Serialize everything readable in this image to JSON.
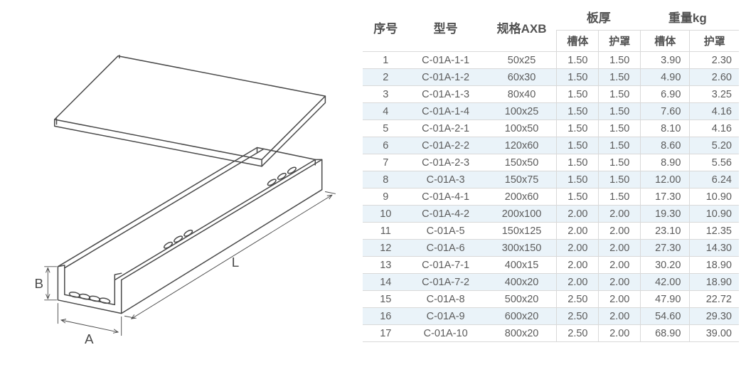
{
  "diagram": {
    "dimension_labels": {
      "L": "L",
      "A": "A",
      "B": "B"
    },
    "stroke": "#4a4a4a",
    "stroke_width": 1.6,
    "background": "#ffffff"
  },
  "table": {
    "headers": {
      "seq": "序号",
      "model": "型号",
      "spec": "规格AXB",
      "thickness_group": "板厚",
      "weight_group": "重量kg",
      "trough": "槽体",
      "cover": "护罩"
    },
    "stripe_color": "#eaf3f9",
    "border_color": "#d9d9d9",
    "rows": [
      {
        "seq": "1",
        "model": "C-01A-1-1",
        "spec": "50x25",
        "thick_trough": "1.50",
        "thick_cover": "1.50",
        "w_trough": "3.90",
        "w_cover": "2.30"
      },
      {
        "seq": "2",
        "model": "C-01A-1-2",
        "spec": "60x30",
        "thick_trough": "1.50",
        "thick_cover": "1.50",
        "w_trough": "4.90",
        "w_cover": "2.60"
      },
      {
        "seq": "3",
        "model": "C-01A-1-3",
        "spec": "80x40",
        "thick_trough": "1.50",
        "thick_cover": "1.50",
        "w_trough": "6.90",
        "w_cover": "3.25"
      },
      {
        "seq": "4",
        "model": "C-01A-1-4",
        "spec": "100x25",
        "thick_trough": "1.50",
        "thick_cover": "1.50",
        "w_trough": "7.60",
        "w_cover": "4.16"
      },
      {
        "seq": "5",
        "model": "C-01A-2-1",
        "spec": "100x50",
        "thick_trough": "1.50",
        "thick_cover": "1.50",
        "w_trough": "8.10",
        "w_cover": "4.16"
      },
      {
        "seq": "6",
        "model": "C-01A-2-2",
        "spec": "120x60",
        "thick_trough": "1.50",
        "thick_cover": "1.50",
        "w_trough": "8.60",
        "w_cover": "5.20"
      },
      {
        "seq": "7",
        "model": "C-01A-2-3",
        "spec": "150x50",
        "thick_trough": "1.50",
        "thick_cover": "1.50",
        "w_trough": "8.90",
        "w_cover": "5.56"
      },
      {
        "seq": "8",
        "model": "C-01A-3",
        "spec": "150x75",
        "thick_trough": "1.50",
        "thick_cover": "1.50",
        "w_trough": "12.00",
        "w_cover": "6.24"
      },
      {
        "seq": "9",
        "model": "C-01A-4-1",
        "spec": "200x60",
        "thick_trough": "1.50",
        "thick_cover": "1.50",
        "w_trough": "17.30",
        "w_cover": "10.90"
      },
      {
        "seq": "10",
        "model": "C-01A-4-2",
        "spec": "200x100",
        "thick_trough": "2.00",
        "thick_cover": "2.00",
        "w_trough": "19.30",
        "w_cover": "10.90"
      },
      {
        "seq": "11",
        "model": "C-01A-5",
        "spec": "150x125",
        "thick_trough": "2.00",
        "thick_cover": "2.00",
        "w_trough": "23.10",
        "w_cover": "12.35"
      },
      {
        "seq": "12",
        "model": "C-01A-6",
        "spec": "300x150",
        "thick_trough": "2.00",
        "thick_cover": "2.00",
        "w_trough": "27.30",
        "w_cover": "14.30"
      },
      {
        "seq": "13",
        "model": "C-01A-7-1",
        "spec": "400x15",
        "thick_trough": "2.00",
        "thick_cover": "2.00",
        "w_trough": "30.20",
        "w_cover": "18.90"
      },
      {
        "seq": "14",
        "model": "C-01A-7-2",
        "spec": "400x20",
        "thick_trough": "2.00",
        "thick_cover": "2.00",
        "w_trough": "42.00",
        "w_cover": "18.90"
      },
      {
        "seq": "15",
        "model": "C-01A-8",
        "spec": "500x20",
        "thick_trough": "2.50",
        "thick_cover": "2.00",
        "w_trough": "47.90",
        "w_cover": "22.72"
      },
      {
        "seq": "16",
        "model": "C-01A-9",
        "spec": "600x20",
        "thick_trough": "2.50",
        "thick_cover": "2.00",
        "w_trough": "54.60",
        "w_cover": "29.30"
      },
      {
        "seq": "17",
        "model": "C-01A-10",
        "spec": "800x20",
        "thick_trough": "2.50",
        "thick_cover": "2.00",
        "w_trough": "68.90",
        "w_cover": "39.00"
      }
    ]
  }
}
